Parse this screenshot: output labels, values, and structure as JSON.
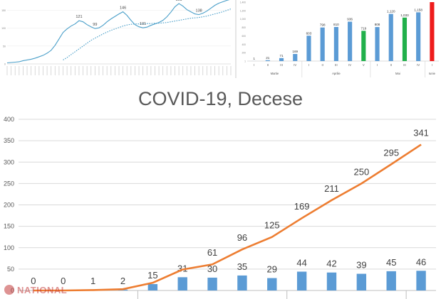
{
  "chart_data": [
    {
      "id": "top-left",
      "type": "line",
      "title": "",
      "xlabel": "",
      "ylabel": "",
      "ylim": [
        0,
        175
      ],
      "y_ticks": [
        0,
        50,
        100,
        150
      ],
      "series": [
        {
          "values": [
            3,
            4,
            5,
            6,
            9,
            11,
            13,
            16,
            20,
            24,
            30,
            38,
            52,
            70,
            88,
            98,
            106,
            112,
            121,
            118,
            110,
            104,
            99,
            101,
            108,
            118,
            126,
            133,
            140,
            146,
            136,
            122,
            110,
            104,
            101,
            103,
            108,
            112,
            116,
            122,
            132,
            145,
            160,
            169,
            162,
            152,
            146,
            140,
            138,
            142,
            148,
            156,
            164,
            170,
            174,
            178,
            181
          ],
          "color": "#4a9fc9",
          "style": "solid"
        },
        {
          "values": [
            null,
            null,
            null,
            null,
            null,
            null,
            null,
            null,
            null,
            null,
            null,
            null,
            null,
            null,
            11,
            18,
            26,
            34,
            42,
            50,
            58,
            66,
            72,
            78,
            84,
            89,
            94,
            98,
            102,
            106,
            109,
            111,
            112,
            112,
            112,
            113,
            113,
            114,
            114,
            115,
            116,
            118,
            120,
            122,
            124,
            126,
            128,
            129,
            130,
            132,
            134,
            137,
            140,
            143,
            146,
            150,
            154
          ],
          "color": "#4a9fc9",
          "style": "dotted"
        }
      ],
      "data_labels": [
        {
          "index": 18,
          "text": "121"
        },
        {
          "index": 22,
          "text": "99"
        },
        {
          "index": 29,
          "text": "146"
        },
        {
          "index": 34,
          "text": "101"
        },
        {
          "index": 43,
          "text": "169"
        },
        {
          "index": 48,
          "text": "138"
        }
      ]
    },
    {
      "id": "top-right",
      "type": "bar",
      "title": "",
      "ylim": [
        0,
        1400
      ],
      "y_ticks": [
        "1",
        "200",
        "400",
        "600",
        "800",
        "1,000",
        "1,200",
        "1,400"
      ],
      "categories": [
        "I",
        "II",
        "III",
        "IV",
        "I",
        "II",
        "III",
        "IV",
        "V",
        "I",
        "II",
        "III",
        "IV",
        "I"
      ],
      "values": [
        1,
        21,
        71,
        169,
        603,
        798,
        810,
        936,
        719,
        808,
        1120,
        1033,
        1158,
        1400
      ],
      "labels": [
        "1",
        "21",
        "71",
        "169",
        "603",
        "798",
        "810",
        "936",
        "719",
        "808",
        "1,120",
        "1,033",
        "1,158",
        ""
      ],
      "colors": [
        "#5b9bd5",
        "#5b9bd5",
        "#5b9bd5",
        "#5b9bd5",
        "#5b9bd5",
        "#5b9bd5",
        "#5b9bd5",
        "#5b9bd5",
        "#21b04b",
        "#5b9bd5",
        "#5b9bd5",
        "#21b04b",
        "#5b9bd5",
        "#ee1c1c"
      ],
      "groups": [
        {
          "label": "Martie",
          "from": 0,
          "to": 3
        },
        {
          "label": "Aprilie",
          "from": 4,
          "to": 8
        },
        {
          "label": "Mai",
          "from": 9,
          "to": 12
        },
        {
          "label": "Iunie",
          "from": 13,
          "to": 13
        }
      ]
    },
    {
      "id": "main",
      "type": "bar+line",
      "title": "COVID-19, Decese",
      "ylim": [
        0,
        400
      ],
      "y_ticks": [
        0,
        50,
        100,
        150,
        200,
        250,
        300,
        350,
        400
      ],
      "bars": {
        "values": [
          0,
          0,
          1,
          2,
          15,
          31,
          30,
          35,
          29,
          44,
          42,
          39,
          45,
          46
        ],
        "labels": [
          "0",
          "0",
          "1",
          "2",
          "15",
          "31",
          "30",
          "35",
          "29",
          "44",
          "42",
          "39",
          "45",
          "46"
        ],
        "color": "#5b9bd5"
      },
      "line": {
        "values": [
          0,
          0,
          1,
          3,
          18,
          49,
          61,
          96,
          125,
          169,
          211,
          250,
          295,
          341
        ],
        "labels": [
          "",
          "",
          "",
          "",
          "",
          "",
          "61",
          "96",
          "125",
          "169",
          "211",
          "250",
          "295",
          "341"
        ],
        "color": "#ed7d31"
      },
      "group_breaks_after": [
        3,
        8,
        12
      ]
    }
  ],
  "watermark": {
    "text": "NATIONAL"
  }
}
